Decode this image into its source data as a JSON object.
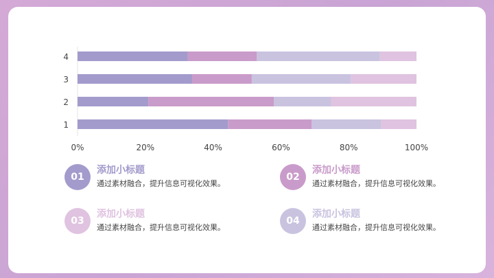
{
  "chart_data": {
    "type": "bar",
    "orientation": "horizontal",
    "stacked": "percent",
    "categories": [
      "1",
      "2",
      "3",
      "4"
    ],
    "series": [
      {
        "values": [
          44.4,
          20.9,
          33.8,
          32.5
        ],
        "color": "#a39bcc"
      },
      {
        "values": [
          24.7,
          37.0,
          17.6,
          20.4
        ],
        "color": "#c99bca"
      },
      {
        "values": [
          20.5,
          16.9,
          29.3,
          36.3
        ],
        "color": "#c9c3e0"
      },
      {
        "values": [
          10.4,
          25.2,
          19.3,
          10.8
        ],
        "color": "#e0c3e0"
      }
    ],
    "x_ticks": [
      "0%",
      "20%",
      "40%",
      "60%",
      "80%",
      "100%"
    ],
    "xlim": [
      0,
      100
    ],
    "grid": false,
    "legend": "none"
  },
  "items": [
    {
      "number": "01",
      "title": "添加小标题",
      "desc": "通过素材融合，提升信息可视化效果。",
      "color": "#a39bcc"
    },
    {
      "number": "02",
      "title": "添加小标题",
      "desc": "通过素材融合，提升信息可视化效果。",
      "color": "#c99bca"
    },
    {
      "number": "03",
      "title": "添加小标题",
      "desc": "通过素材融合，提升信息可视化效果。",
      "color": "#e0c3e0"
    },
    {
      "number": "04",
      "title": "添加小标题",
      "desc": "通过素材融合，提升信息可视化效果。",
      "color": "#c9c3e0"
    }
  ]
}
